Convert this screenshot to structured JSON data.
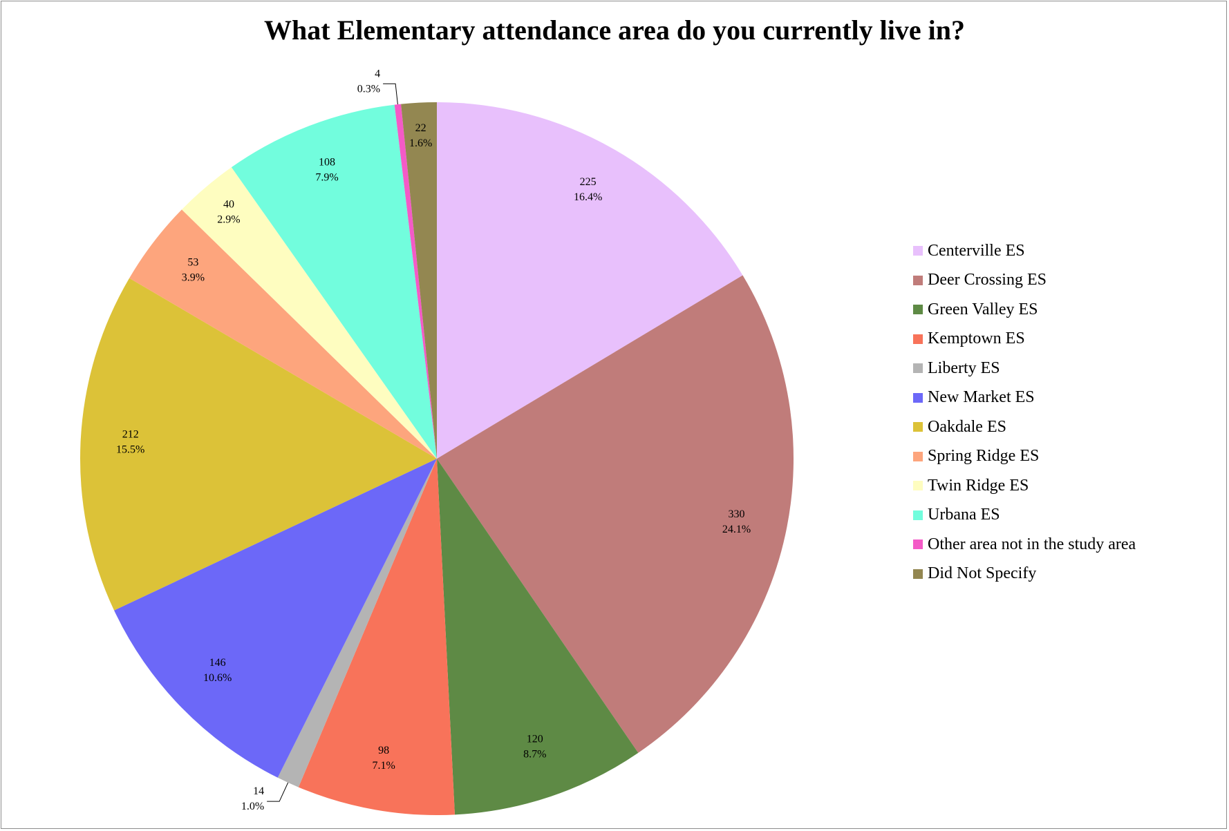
{
  "chart_data": {
    "type": "pie",
    "title": "What Elementary attendance area do you currently live in?",
    "legend_position": "right",
    "slices": [
      {
        "name": "Centerville ES",
        "value": 225,
        "percent": "16.4%",
        "color": "#E8C0FC"
      },
      {
        "name": "Deer Crossing ES",
        "value": 330,
        "percent": "24.1%",
        "color": "#C07C7A"
      },
      {
        "name": "Green Valley ES",
        "value": 120,
        "percent": "8.7%",
        "color": "#5E8A45"
      },
      {
        "name": "Kemptown ES",
        "value": 98,
        "percent": "7.1%",
        "color": "#F8735A"
      },
      {
        "name": "Liberty ES",
        "value": 14,
        "percent": "1.0%",
        "color": "#B4B4B4"
      },
      {
        "name": "New Market ES",
        "value": 146,
        "percent": "10.6%",
        "color": "#6C68F8"
      },
      {
        "name": "Oakdale ES",
        "value": 212,
        "percent": "15.5%",
        "color": "#DCC238"
      },
      {
        "name": "Spring Ridge ES",
        "value": 53,
        "percent": "3.9%",
        "color": "#FDA57D"
      },
      {
        "name": "Twin Ridge ES",
        "value": 40,
        "percent": "2.9%",
        "color": "#FEFDC0"
      },
      {
        "name": "Urbana ES",
        "value": 108,
        "percent": "7.9%",
        "color": "#72FDDD"
      },
      {
        "name": "Other area not in the study area",
        "value": 4,
        "percent": "0.3%",
        "color": "#F45AC7"
      },
      {
        "name": "Did Not Specify",
        "value": 22,
        "percent": "1.6%",
        "color": "#938751"
      }
    ]
  }
}
